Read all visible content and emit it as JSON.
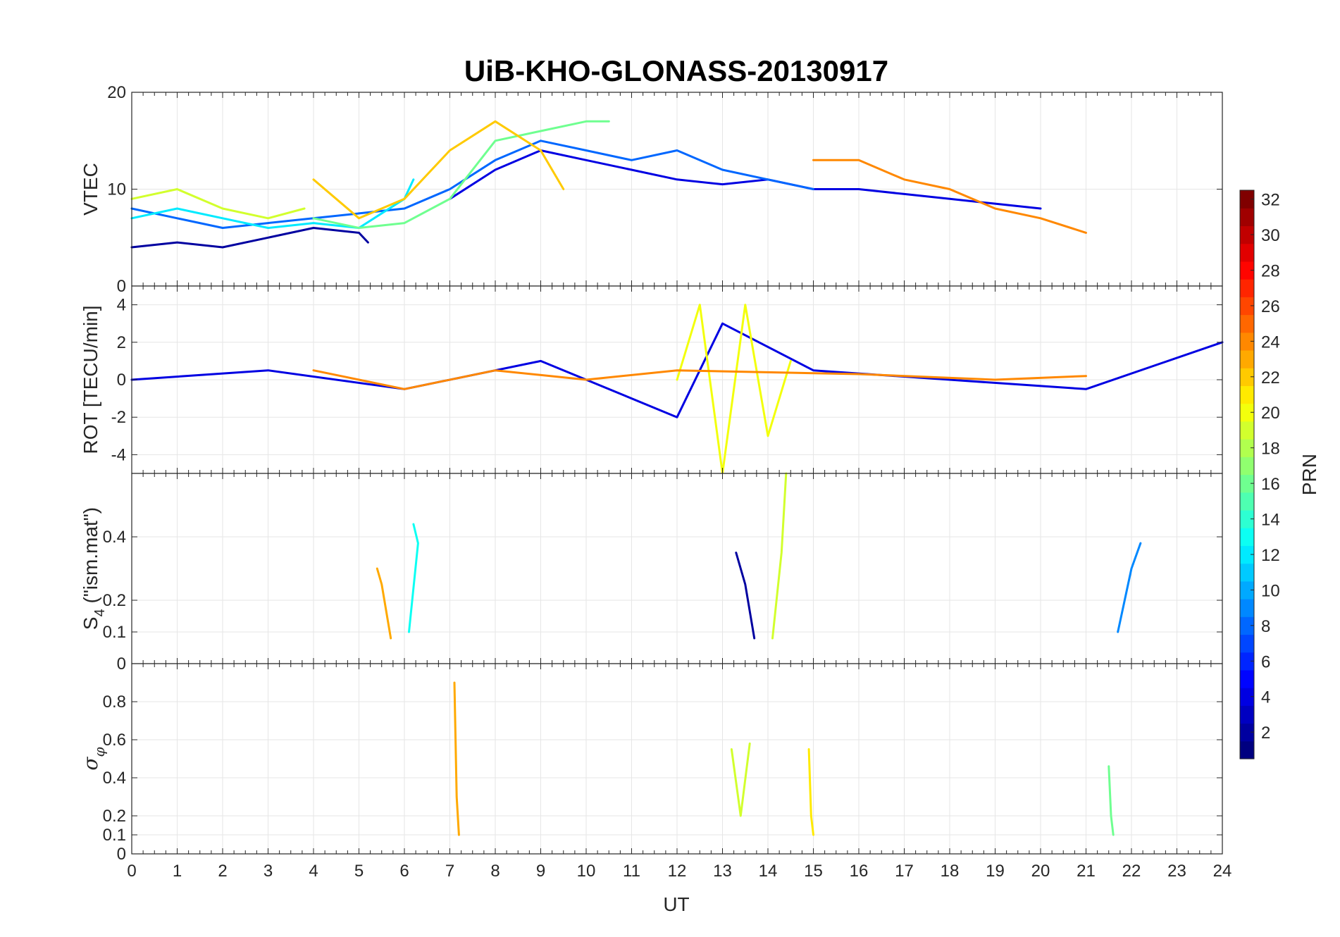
{
  "chart_data": {
    "type": "line",
    "title": "UiB-KHO-GLONASS-20130917",
    "xlabel": "UT",
    "xlim": [
      0,
      24
    ],
    "x_ticks": [
      0,
      1,
      2,
      3,
      4,
      5,
      6,
      7,
      8,
      9,
      10,
      11,
      12,
      13,
      14,
      15,
      16,
      17,
      18,
      19,
      20,
      21,
      22,
      23,
      24
    ],
    "grid": true,
    "panels": [
      {
        "ylabel": "VTEC",
        "ylim": [
          0,
          20
        ],
        "y_ticks": [
          0,
          10,
          20
        ],
        "series": [
          {
            "prn": 2,
            "x": [
              0,
              1,
              2,
              3,
              4,
              5,
              5.2
            ],
            "y": [
              4,
              4.5,
              4,
              5,
              6,
              5.5,
              4.5
            ]
          },
          {
            "prn": 4,
            "x": [
              7,
              8,
              9,
              10,
              11,
              12,
              13,
              14,
              15,
              16,
              17,
              18,
              19,
              20
            ],
            "y": [
              9,
              12,
              14,
              13,
              12,
              11,
              10.5,
              11,
              10,
              10,
              9.5,
              9,
              8.5,
              8
            ]
          },
          {
            "prn": 8,
            "x": [
              0,
              1,
              2,
              3,
              4,
              5,
              6,
              7,
              8,
              9,
              10,
              11,
              12,
              13,
              14,
              15
            ],
            "y": [
              8,
              7,
              6,
              6.5,
              7,
              7.5,
              8,
              10,
              13,
              15,
              14,
              13,
              14,
              12,
              11,
              10
            ]
          },
          {
            "prn": 12,
            "x": [
              0,
              1,
              2,
              3,
              4,
              5,
              6,
              6.2
            ],
            "y": [
              7,
              8,
              7,
              6,
              6.5,
              6,
              9,
              11
            ]
          },
          {
            "prn": 16,
            "x": [
              4,
              5,
              6,
              7,
              8,
              9,
              10,
              10.5
            ],
            "y": [
              7,
              6,
              6.5,
              9,
              15,
              16,
              17,
              17
            ]
          },
          {
            "prn": 19,
            "x": [
              0,
              1,
              2,
              3,
              3.8
            ],
            "y": [
              9,
              10,
              8,
              7,
              8
            ]
          },
          {
            "prn": 22,
            "x": [
              4,
              5,
              6,
              7,
              8,
              9,
              9.5
            ],
            "y": [
              11,
              7,
              9,
              14,
              17,
              14,
              10
            ]
          },
          {
            "prn": 24,
            "x": [
              15,
              16,
              17,
              18,
              19,
              20,
              21
            ],
            "y": [
              13,
              13,
              11,
              10,
              8,
              7,
              5.5
            ]
          }
        ]
      },
      {
        "ylabel": "ROT [TECU/min]",
        "ylim": [
          -5,
          5
        ],
        "y_ticks": [
          -4,
          -2,
          0,
          2,
          4
        ],
        "series": [
          {
            "prn": 4,
            "x": [
              0,
              3,
              6,
              9,
              12,
              13,
              15,
              18,
              21,
              24
            ],
            "y": [
              0,
              0.5,
              -0.5,
              1,
              -2,
              3,
              0.5,
              0,
              -0.5,
              2
            ]
          },
          {
            "prn": 20,
            "x": [
              12,
              12.5,
              13,
              13.5,
              14,
              14.5
            ],
            "y": [
              0,
              4,
              -5,
              4,
              -3,
              1
            ]
          },
          {
            "prn": 24,
            "x": [
              4,
              6,
              8,
              10,
              12,
              16,
              19,
              21
            ],
            "y": [
              0.5,
              -0.5,
              0.5,
              0,
              0.5,
              0.3,
              0,
              0.2
            ]
          }
        ]
      },
      {
        "ylabel": "S4 (\"ism.mat\")",
        "ylabel_main": "S",
        "ylabel_sub": "4",
        "ylabel_rest": " (\"ism.mat\")",
        "ylim": [
          0,
          0.6
        ],
        "y_ticks": [
          0,
          0.1,
          0.2,
          0.4
        ],
        "series": [
          {
            "prn": 2,
            "x": [
              13.3,
              13.5,
              13.7
            ],
            "y": [
              0.35,
              0.25,
              0.08
            ]
          },
          {
            "prn": 9,
            "x": [
              22.2,
              22.0,
              21.7
            ],
            "y": [
              0.38,
              0.3,
              0.1
            ]
          },
          {
            "prn": 13,
            "x": [
              6.2,
              6.3,
              6.1
            ],
            "y": [
              0.44,
              0.38,
              0.1
            ]
          },
          {
            "prn": 19,
            "x": [
              14.4,
              14.3,
              14.1
            ],
            "y": [
              0.6,
              0.35,
              0.08
            ]
          },
          {
            "prn": 23,
            "x": [
              5.4,
              5.5,
              5.7
            ],
            "y": [
              0.3,
              0.25,
              0.08
            ]
          }
        ]
      },
      {
        "ylabel": "σφ",
        "ylabel_main": "σ",
        "ylabel_sub": "φ",
        "ylim": [
          0,
          1
        ],
        "y_ticks": [
          0,
          0.1,
          0.2,
          0.4,
          0.6,
          0.8
        ],
        "series": [
          {
            "prn": 23,
            "x": [
              7.1,
              7.15,
              7.2
            ],
            "y": [
              0.9,
              0.3,
              0.1
            ]
          },
          {
            "prn": 19,
            "x": [
              13.2,
              13.4,
              13.6
            ],
            "y": [
              0.55,
              0.2,
              0.58
            ]
          },
          {
            "prn": 21,
            "x": [
              14.9,
              14.95,
              15.0
            ],
            "y": [
              0.55,
              0.2,
              0.1
            ]
          },
          {
            "prn": 16,
            "x": [
              21.5,
              21.55,
              21.6
            ],
            "y": [
              0.46,
              0.2,
              0.1
            ]
          }
        ]
      }
    ],
    "colorbar": {
      "label": "PRN",
      "range": [
        1,
        32
      ],
      "ticks": [
        2,
        4,
        6,
        8,
        10,
        12,
        14,
        16,
        18,
        20,
        22,
        24,
        26,
        28,
        30,
        32
      ],
      "colormap": "jet"
    }
  }
}
